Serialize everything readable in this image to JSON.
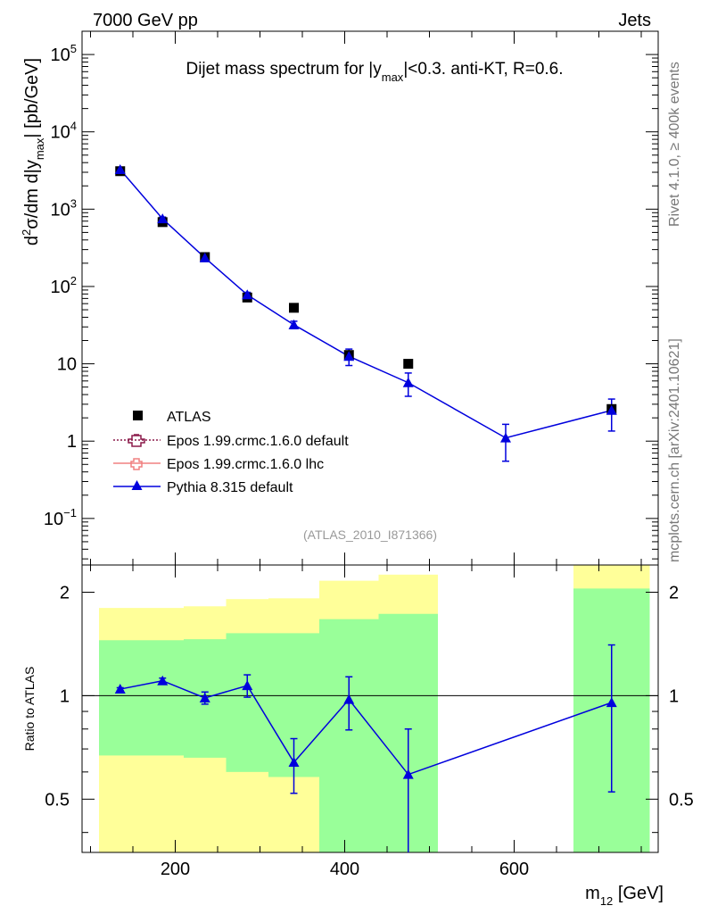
{
  "header": {
    "left": "7000 GeV pp",
    "right": "Jets"
  },
  "side_labels": {
    "rivet": "Rivet 4.1.0, ≥ 400k events",
    "mcplots": "mcplots.cern.ch [arXiv:2401.10621]"
  },
  "colors": {
    "data": "#000000",
    "pythia": "#0000dd",
    "epos_default": "#8b1a4a",
    "epos_lhc": "#f08080",
    "band_inner": "#99ff99",
    "band_outer": "#ffff99"
  },
  "chart_data": [
    {
      "type": "scatter",
      "panel": "main",
      "title_parts": [
        "Dijet mass spectrum for |y",
        "max",
        "|<0.3.  anti-KT, R=0.6."
      ],
      "ylabel_parts": [
        "d",
        "2",
        "σ/dm d|y",
        "max",
        "| [pb/GeV]"
      ],
      "yscale": "log",
      "ylim": [
        0.025,
        200000
      ],
      "xlim": [
        90,
        770
      ],
      "y_ticks": [
        {
          "value": 0.1,
          "base": "10",
          "exp": "−1"
        },
        {
          "value": 1,
          "base": "1",
          "exp": ""
        },
        {
          "value": 10,
          "base": "10",
          "exp": ""
        },
        {
          "value": 100,
          "base": "10",
          "exp": "2"
        },
        {
          "value": 1000,
          "base": "10",
          "exp": "3"
        },
        {
          "value": 10000,
          "base": "10",
          "exp": "4"
        },
        {
          "value": 100000,
          "base": "10",
          "exp": "5"
        }
      ],
      "watermark": "(ATLAS_2010_I871366)",
      "legend": [
        {
          "label": "ATLAS",
          "style": "square"
        },
        {
          "label": "Epos 1.99.crmc.1.6.0 default",
          "style": "epos_default"
        },
        {
          "label": "Epos 1.99.crmc.1.6.0 lhc",
          "style": "epos_lhc"
        },
        {
          "label": "Pythia 8.315 default",
          "style": "pythia"
        }
      ],
      "series": [
        {
          "name": "ATLAS",
          "x": [
            135,
            185,
            235,
            285,
            340,
            405,
            475,
            715
          ],
          "y": [
            3100,
            680,
            240,
            72,
            53,
            13,
            10,
            2.6
          ],
          "yerr_low": [
            0,
            0,
            0,
            0,
            0,
            0,
            0,
            0
          ],
          "yerr_high": [
            0,
            0,
            0,
            0,
            0,
            0,
            0,
            0
          ]
        },
        {
          "name": "Pythia 8.315 default",
          "x": [
            135,
            185,
            235,
            285,
            340,
            405,
            475,
            590,
            715
          ],
          "y": [
            3250,
            750,
            235,
            78,
            32,
            12.5,
            5.7,
            1.1,
            2.5
          ],
          "yerr_low": [
            150,
            40,
            15,
            6,
            3.5,
            3,
            1.9,
            0.55,
            1.15
          ],
          "yerr_high": [
            150,
            40,
            15,
            6,
            3.5,
            3,
            1.9,
            0.55,
            1.0
          ]
        }
      ]
    },
    {
      "type": "scatter",
      "panel": "ratio",
      "ylabel": "Ratio to ATLAS",
      "xlabel_parts": [
        "m",
        "12",
        " [GeV]"
      ],
      "xlim": [
        90,
        770
      ],
      "ylim": [
        0.35,
        2.4
      ],
      "x_ticks": [
        200,
        400,
        600
      ],
      "y_ticks": [
        0.5,
        1,
        2
      ],
      "reference_line": 1,
      "bands": [
        {
          "x_low": 110,
          "x_high": 160,
          "inner_low": 0.67,
          "inner_high": 1.45,
          "outer_low": 0.35,
          "outer_high": 1.8
        },
        {
          "x_low": 160,
          "x_high": 210,
          "inner_low": 0.67,
          "inner_high": 1.45,
          "outer_low": 0.35,
          "outer_high": 1.8
        },
        {
          "x_low": 210,
          "x_high": 260,
          "inner_low": 0.66,
          "inner_high": 1.46,
          "outer_low": 0.35,
          "outer_high": 1.82
        },
        {
          "x_low": 260,
          "x_high": 310,
          "inner_low": 0.6,
          "inner_high": 1.52,
          "outer_low": 0.35,
          "outer_high": 1.91
        },
        {
          "x_low": 310,
          "x_high": 370,
          "inner_low": 0.58,
          "inner_high": 1.52,
          "outer_low": 0.35,
          "outer_high": 1.92
        },
        {
          "x_low": 370,
          "x_high": 440,
          "inner_low": 0.35,
          "inner_high": 1.67,
          "outer_low": 0.35,
          "outer_high": 2.16
        },
        {
          "x_low": 440,
          "x_high": 510,
          "inner_low": 0.35,
          "inner_high": 1.73,
          "outer_low": 0.35,
          "outer_high": 2.25
        },
        {
          "x_low": 670,
          "x_high": 760,
          "inner_low": 0.35,
          "inner_high": 2.05,
          "outer_low": 0.35,
          "outer_high": 2.4
        }
      ],
      "series": [
        {
          "name": "Pythia 8.315 default",
          "x": [
            135,
            185,
            235,
            285,
            340,
            405,
            475,
            715
          ],
          "y": [
            1.045,
            1.105,
            0.985,
            1.07,
            0.64,
            0.975,
            0.59,
            0.955
          ],
          "yerr_low": [
            0.01,
            0.02,
            0.04,
            0.08,
            0.12,
            0.18,
            0.26,
            0.43
          ],
          "yerr_high": [
            0.01,
            0.02,
            0.04,
            0.08,
            0.11,
            0.16,
            0.21,
            0.45
          ]
        }
      ]
    }
  ]
}
